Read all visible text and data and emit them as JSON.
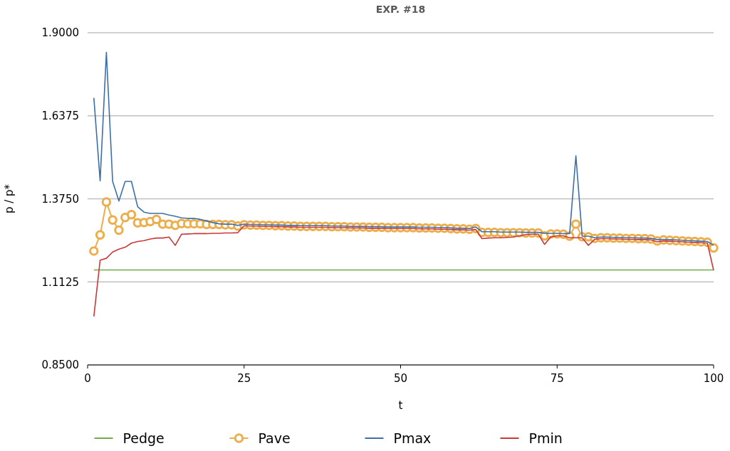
{
  "chart_data": {
    "type": "line",
    "title": "EXP. #18",
    "xlabel": "t",
    "ylabel": "p / p*",
    "x": [
      1,
      2,
      3,
      4,
      5,
      6,
      7,
      8,
      9,
      10,
      11,
      12,
      13,
      14,
      15,
      16,
      17,
      18,
      19,
      20,
      21,
      22,
      23,
      24,
      25,
      26,
      27,
      28,
      29,
      30,
      31,
      32,
      33,
      34,
      35,
      36,
      37,
      38,
      39,
      40,
      41,
      42,
      43,
      44,
      45,
      46,
      47,
      48,
      49,
      50,
      51,
      52,
      53,
      54,
      55,
      56,
      57,
      58,
      59,
      60,
      61,
      62,
      63,
      64,
      65,
      66,
      67,
      68,
      69,
      70,
      71,
      72,
      73,
      74,
      75,
      76,
      77,
      78,
      79,
      80,
      81,
      82,
      83,
      84,
      85,
      86,
      87,
      88,
      89,
      90,
      91,
      92,
      93,
      94,
      95,
      96,
      97,
      98,
      99,
      100
    ],
    "series": [
      {
        "name": "Pedge",
        "color": "#70ad47",
        "marker": "none",
        "values": [
          1.15,
          1.15,
          1.15,
          1.15,
          1.15,
          1.15,
          1.15,
          1.15,
          1.15,
          1.15,
          1.15,
          1.15,
          1.15,
          1.15,
          1.15,
          1.15,
          1.15,
          1.15,
          1.15,
          1.15,
          1.15,
          1.15,
          1.15,
          1.15,
          1.15,
          1.15,
          1.15,
          1.15,
          1.15,
          1.15,
          1.15,
          1.15,
          1.15,
          1.15,
          1.15,
          1.15,
          1.15,
          1.15,
          1.15,
          1.15,
          1.15,
          1.15,
          1.15,
          1.15,
          1.15,
          1.15,
          1.15,
          1.15,
          1.15,
          1.15,
          1.15,
          1.15,
          1.15,
          1.15,
          1.15,
          1.15,
          1.15,
          1.15,
          1.15,
          1.15,
          1.15,
          1.15,
          1.15,
          1.15,
          1.15,
          1.15,
          1.15,
          1.15,
          1.15,
          1.15,
          1.15,
          1.15,
          1.15,
          1.15,
          1.15,
          1.15,
          1.15,
          1.15,
          1.15,
          1.15,
          1.15,
          1.15,
          1.15,
          1.15,
          1.15,
          1.15,
          1.15,
          1.15,
          1.15,
          1.15,
          1.15,
          1.15,
          1.15,
          1.15,
          1.15,
          1.15,
          1.15,
          1.15,
          1.15,
          1.15
        ]
      },
      {
        "name": "Pave",
        "color": "#edae49",
        "marker": "circle",
        "values": [
          1.21,
          1.261,
          1.365,
          1.308,
          1.276,
          1.316,
          1.325,
          1.299,
          1.3,
          1.303,
          1.31,
          1.295,
          1.295,
          1.291,
          1.297,
          1.296,
          1.296,
          1.296,
          1.294,
          1.294,
          1.294,
          1.293,
          1.293,
          1.289,
          1.293,
          1.292,
          1.292,
          1.291,
          1.291,
          1.29,
          1.29,
          1.289,
          1.289,
          1.288,
          1.288,
          1.288,
          1.288,
          1.288,
          1.287,
          1.287,
          1.287,
          1.286,
          1.286,
          1.286,
          1.285,
          1.285,
          1.285,
          1.284,
          1.284,
          1.284,
          1.284,
          1.284,
          1.283,
          1.283,
          1.283,
          1.282,
          1.282,
          1.281,
          1.28,
          1.28,
          1.279,
          1.281,
          1.269,
          1.269,
          1.269,
          1.268,
          1.268,
          1.268,
          1.268,
          1.267,
          1.267,
          1.267,
          1.258,
          1.264,
          1.264,
          1.263,
          1.257,
          1.295,
          1.255,
          1.255,
          1.25,
          1.252,
          1.252,
          1.251,
          1.251,
          1.25,
          1.25,
          1.249,
          1.249,
          1.248,
          1.242,
          1.245,
          1.244,
          1.243,
          1.242,
          1.241,
          1.24,
          1.239,
          1.238,
          1.22
        ]
      },
      {
        "name": "Pmax",
        "color": "#3d6fa8",
        "marker": "none",
        "values": [
          1.694,
          1.432,
          1.838,
          1.43,
          1.368,
          1.43,
          1.43,
          1.35,
          1.333,
          1.329,
          1.329,
          1.329,
          1.324,
          1.32,
          1.315,
          1.313,
          1.313,
          1.31,
          1.305,
          1.3,
          1.296,
          1.295,
          1.295,
          1.291,
          1.295,
          1.294,
          1.294,
          1.293,
          1.293,
          1.292,
          1.292,
          1.291,
          1.291,
          1.29,
          1.29,
          1.29,
          1.29,
          1.29,
          1.289,
          1.289,
          1.289,
          1.288,
          1.288,
          1.288,
          1.287,
          1.287,
          1.287,
          1.286,
          1.286,
          1.286,
          1.286,
          1.286,
          1.285,
          1.285,
          1.285,
          1.284,
          1.284,
          1.283,
          1.282,
          1.282,
          1.281,
          1.286,
          1.271,
          1.271,
          1.271,
          1.27,
          1.27,
          1.27,
          1.27,
          1.269,
          1.269,
          1.269,
          1.266,
          1.266,
          1.266,
          1.265,
          1.265,
          1.511,
          1.257,
          1.257,
          1.252,
          1.254,
          1.254,
          1.253,
          1.253,
          1.252,
          1.252,
          1.251,
          1.251,
          1.25,
          1.246,
          1.247,
          1.246,
          1.245,
          1.244,
          1.243,
          1.242,
          1.241,
          1.24,
          1.228
        ]
      },
      {
        "name": "Pmin",
        "color": "#c9383a",
        "marker": "none",
        "values": [
          1.003,
          1.181,
          1.187,
          1.207,
          1.216,
          1.222,
          1.235,
          1.24,
          1.243,
          1.248,
          1.251,
          1.251,
          1.254,
          1.228,
          1.263,
          1.264,
          1.265,
          1.265,
          1.265,
          1.266,
          1.266,
          1.267,
          1.267,
          1.268,
          1.29,
          1.289,
          1.289,
          1.288,
          1.288,
          1.287,
          1.287,
          1.286,
          1.286,
          1.285,
          1.285,
          1.285,
          1.285,
          1.285,
          1.284,
          1.284,
          1.284,
          1.283,
          1.283,
          1.283,
          1.282,
          1.282,
          1.282,
          1.281,
          1.281,
          1.281,
          1.281,
          1.281,
          1.28,
          1.28,
          1.28,
          1.279,
          1.279,
          1.278,
          1.277,
          1.277,
          1.276,
          1.278,
          1.249,
          1.251,
          1.252,
          1.252,
          1.253,
          1.254,
          1.258,
          1.262,
          1.263,
          1.263,
          1.231,
          1.255,
          1.258,
          1.258,
          1.252,
          1.252,
          1.252,
          1.228,
          1.247,
          1.249,
          1.249,
          1.248,
          1.248,
          1.247,
          1.247,
          1.246,
          1.246,
          1.245,
          1.239,
          1.242,
          1.241,
          1.24,
          1.239,
          1.238,
          1.237,
          1.236,
          1.235,
          1.149
        ]
      }
    ],
    "xlim": [
      0,
      100
    ],
    "xticks": [
      0,
      25,
      50,
      75,
      100
    ],
    "ylim": [
      0.85,
      1.9
    ],
    "yticks": [
      {
        "value": 0.85,
        "label": "0.8500"
      },
      {
        "value": 1.1125,
        "label": "1.1125"
      },
      {
        "value": 1.375,
        "label": "1.3750"
      },
      {
        "value": 1.6375,
        "label": "1.6375"
      },
      {
        "value": 1.9,
        "label": "1.9000"
      }
    ],
    "grid": "y",
    "legend": "bottom",
    "line_style": "solid"
  }
}
